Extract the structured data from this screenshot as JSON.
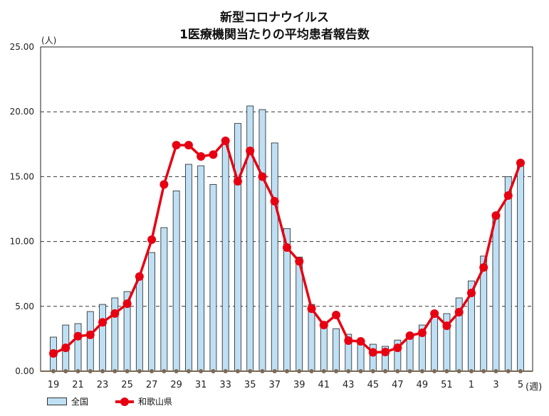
{
  "chart_data": {
    "type": "bar+line",
    "title": [
      "新型コロナウイルス",
      "1医療機関当たりの平均患者報告数"
    ],
    "ylabel": "(人)",
    "xlabel": "(週)",
    "ylim": [
      0,
      25
    ],
    "yticks": [
      "0.00",
      "5.00",
      "10.00",
      "15.00",
      "20.00",
      "25.00"
    ],
    "grid": "horizontal dashed",
    "legend_position": "bottom-left",
    "categories": [
      "19",
      "20",
      "21",
      "22",
      "23",
      "24",
      "25",
      "26",
      "27",
      "28",
      "29",
      "30",
      "31",
      "32",
      "33",
      "34",
      "35",
      "36",
      "37",
      "38",
      "39",
      "40",
      "41",
      "42",
      "43",
      "44",
      "45",
      "46",
      "47",
      "48",
      "49",
      "50",
      "51",
      "52",
      "1",
      "2",
      "3",
      "4",
      "5"
    ],
    "xtick_labels": [
      "19",
      "21",
      "23",
      "25",
      "27",
      "29",
      "31",
      "33",
      "35",
      "37",
      "39",
      "41",
      "43",
      "45",
      "47",
      "49",
      "51",
      "1",
      "3",
      "5"
    ],
    "series": [
      {
        "name": "全国",
        "type": "bar",
        "color": "#bfe0f4",
        "values": [
          2.63,
          3.56,
          3.67,
          4.6,
          5.15,
          5.65,
          6.14,
          7.07,
          9.15,
          11.07,
          13.9,
          15.95,
          15.84,
          14.4,
          17.9,
          19.1,
          20.45,
          20.17,
          17.6,
          11.0,
          8.8,
          5.15,
          3.5,
          3.28,
          2.85,
          2.4,
          2.08,
          1.92,
          2.4,
          2.6,
          3.56,
          4.4,
          4.44,
          5.65,
          6.96,
          8.88,
          12.0,
          15.0,
          15.8
        ]
      },
      {
        "name": "和歌山県",
        "type": "line",
        "color": "#e60012",
        "values": [
          1.37,
          1.8,
          2.7,
          2.8,
          3.77,
          4.45,
          5.2,
          7.3,
          10.14,
          14.4,
          17.43,
          17.43,
          16.56,
          16.7,
          17.76,
          14.64,
          16.99,
          15.0,
          13.1,
          9.53,
          8.47,
          4.82,
          3.56,
          4.33,
          2.36,
          2.3,
          1.45,
          1.48,
          1.8,
          2.74,
          2.96,
          4.44,
          3.5,
          4.55,
          6.03,
          8.0,
          12.0,
          13.54,
          16.06
        ]
      }
    ]
  }
}
